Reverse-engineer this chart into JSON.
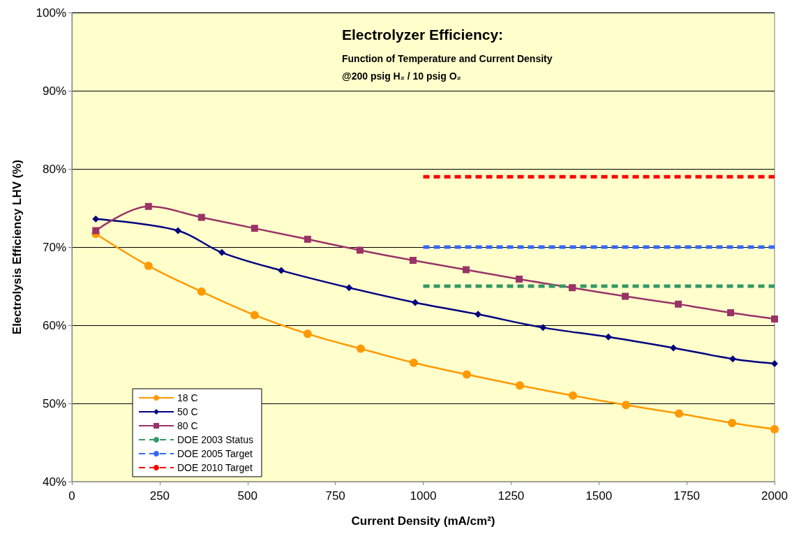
{
  "chart_data": {
    "type": "line",
    "title": "Electrolyzer Efficiency:",
    "subtitle": "Function of Temperature and Current Density",
    "annotations": [
      "@200 psig H₂ / 10 psig O₂"
    ],
    "xlabel": "Current Density (mA/cm²)",
    "ylabel": "Electrolysis Efficiency LHV (%)",
    "xlim": [
      0,
      2000
    ],
    "xticks": [
      0,
      250,
      500,
      750,
      1000,
      1250,
      1500,
      1750,
      2000
    ],
    "ylim": [
      40,
      100
    ],
    "yticks": [
      {
        "value": 40,
        "label": "40%"
      },
      {
        "value": 50,
        "label": "50%"
      },
      {
        "value": 60,
        "label": "60%"
      },
      {
        "value": 70,
        "label": "70%"
      },
      {
        "value": 80,
        "label": "80%"
      },
      {
        "value": 90,
        "label": "90%"
      },
      {
        "value": 100,
        "label": "100%"
      }
    ],
    "grid": "y",
    "legend": "bottom left",
    "series": [
      {
        "name": "18 C",
        "color": "#ff9900",
        "marker": "circle",
        "line_style": "solid",
        "x": [
          68,
          218,
          369,
          520,
          671,
          822,
          973,
          1124,
          1275,
          1426,
          1577,
          1728,
          1879,
          2000
        ],
        "values": [
          71.7,
          67.6,
          64.3,
          61.3,
          58.9,
          57.0,
          55.2,
          53.7,
          52.3,
          51.0,
          49.8,
          48.7,
          47.5,
          46.7
        ]
      },
      {
        "name": "50 C",
        "color": "#000080",
        "marker": "diamond",
        "line_style": "solid",
        "x": [
          68,
          302,
          427,
          596,
          789,
          977,
          1156,
          1341,
          1527,
          1712,
          1881,
          2000
        ],
        "values": [
          73.6,
          72.1,
          69.3,
          67.0,
          64.8,
          62.9,
          61.4,
          59.7,
          58.5,
          57.1,
          55.7,
          55.1
        ]
      },
      {
        "name": "80 C",
        "color": "#993366",
        "marker": "square",
        "line_style": "solid",
        "x": [
          68,
          218,
          369,
          520,
          671,
          820,
          971,
          1122,
          1273,
          1424,
          1575,
          1726,
          1875,
          2000
        ],
        "values": [
          72.1,
          75.2,
          73.8,
          72.4,
          71.0,
          69.6,
          68.3,
          67.1,
          65.9,
          64.8,
          63.7,
          62.7,
          61.6,
          60.8
        ]
      },
      {
        "name": "DOE 2003 Status",
        "color": "#339966",
        "marker": "none",
        "line_style": "dashed",
        "x": [
          1000,
          2000
        ],
        "values": [
          65,
          65
        ]
      },
      {
        "name": "DOE 2005 Target",
        "color": "#3366ff",
        "marker": "none",
        "line_style": "dashed",
        "x": [
          1000,
          2000
        ],
        "values": [
          70,
          70
        ]
      },
      {
        "name": "DOE 2010 Target",
        "color": "#ff0000",
        "marker": "none",
        "line_style": "dashed",
        "x": [
          1000,
          2000
        ],
        "values": [
          79,
          79
        ]
      }
    ]
  }
}
